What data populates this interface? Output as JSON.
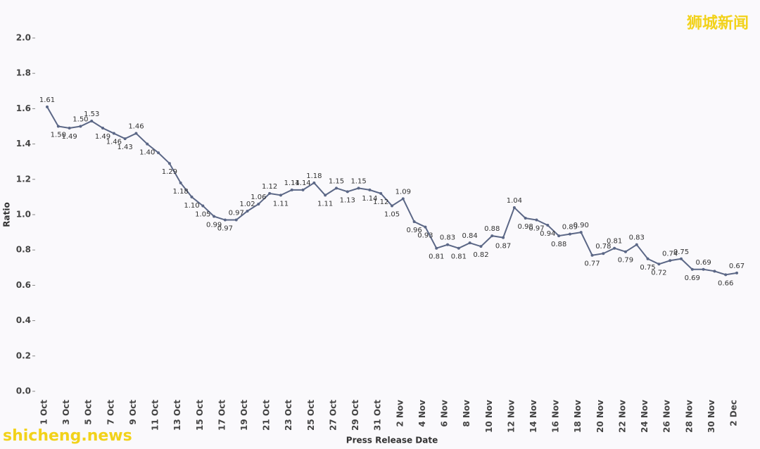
{
  "chart_data": {
    "type": "line",
    "y_label": "Ratio",
    "x_label": "Press Release Date",
    "watermarks": [
      "狮城新闻",
      "shicheng.news"
    ],
    "categories": [
      "1 Oct",
      null,
      "3 Oct",
      null,
      "5 Oct",
      null,
      "7 Oct",
      null,
      "9 Oct",
      null,
      "11 Oct",
      null,
      "13 Oct",
      null,
      "15 Oct",
      null,
      "17 Oct",
      null,
      "19 Oct",
      null,
      "21 Oct",
      null,
      "23 Oct",
      null,
      "25 Oct",
      null,
      "27 Oct",
      null,
      "29 Oct",
      null,
      "31 Oct",
      null,
      "2 Nov",
      null,
      "4 Nov",
      null,
      "6 Nov",
      null,
      "8 Nov",
      null,
      "10 Nov",
      null,
      "12 Nov",
      null,
      "14 Nov",
      null,
      "16 Nov",
      null,
      "18 Nov",
      null,
      "20 Nov",
      null,
      "22 Nov",
      null,
      "24 Nov",
      null,
      "26 Nov",
      null,
      "28 Nov",
      null,
      "30 Nov",
      null,
      "2 Dec"
    ],
    "series": [
      {
        "name": "Ratio",
        "color": "#5b6786",
        "values": [
          1.61,
          1.5,
          1.49,
          1.5,
          1.53,
          1.49,
          1.46,
          1.43,
          1.46,
          1.4,
          1.35,
          1.29,
          1.18,
          1.1,
          1.05,
          0.99,
          0.97,
          0.97,
          1.02,
          1.06,
          1.12,
          1.11,
          1.14,
          1.14,
          1.18,
          1.11,
          1.15,
          1.13,
          1.15,
          1.14,
          1.12,
          1.05,
          1.09,
          0.96,
          0.93,
          0.81,
          0.83,
          0.81,
          0.84,
          0.82,
          0.88,
          0.87,
          1.04,
          0.98,
          0.97,
          0.94,
          0.88,
          0.89,
          0.9,
          0.77,
          0.78,
          0.81,
          0.79,
          0.83,
          0.75,
          0.72,
          0.74,
          0.75,
          0.69,
          0.69,
          0.68,
          0.66,
          0.67
        ],
        "value_labels": [
          "1.61",
          "1.50",
          "1.49",
          "1.50",
          "1.53",
          "1.49",
          "1.46",
          "1.43",
          "1.46",
          "1.40",
          null,
          "1.29",
          "1.18",
          "1.10",
          "1.05",
          "0.99",
          "0.97",
          "0.97",
          "1.02",
          "1.06",
          "1.12",
          "1.11",
          "1.14",
          "1.14",
          "1.18",
          "1.11",
          "1.15",
          "1.13",
          "1.15",
          "1.14",
          "1.12",
          "1.05",
          "1.09",
          "0.96",
          "0.93",
          "0.81",
          "0.83",
          "0.81",
          "0.84",
          "0.82",
          "0.88",
          "0.87",
          "1.04",
          "0.98",
          "0.97",
          "0.94",
          "0.88",
          "0.89",
          "0.90",
          "0.77",
          "0.78",
          "0.81",
          "0.79",
          "0.83",
          "0.75",
          "0.72",
          "0.74",
          "0.75",
          "0.69",
          "0.69",
          null,
          "0.66",
          "0.67"
        ]
      }
    ],
    "ylim": [
      0,
      2
    ],
    "yticks": [
      {
        "value": 0,
        "label": "0.0"
      },
      {
        "value": 0.2,
        "label": "0.2"
      },
      {
        "value": 0.4,
        "label": "0.4"
      },
      {
        "value": 0.6,
        "label": "0.6"
      },
      {
        "value": 0.8,
        "label": "0.8"
      },
      {
        "value": 1,
        "label": "1.0"
      },
      {
        "value": 1.2,
        "label": "1.2"
      },
      {
        "value": 1.4,
        "label": "1.4"
      },
      {
        "value": 1.6,
        "label": "1.6"
      },
      {
        "value": 1.8,
        "label": "1.8"
      },
      {
        "value": 2,
        "label": "2.0"
      }
    ],
    "grid": false
  }
}
